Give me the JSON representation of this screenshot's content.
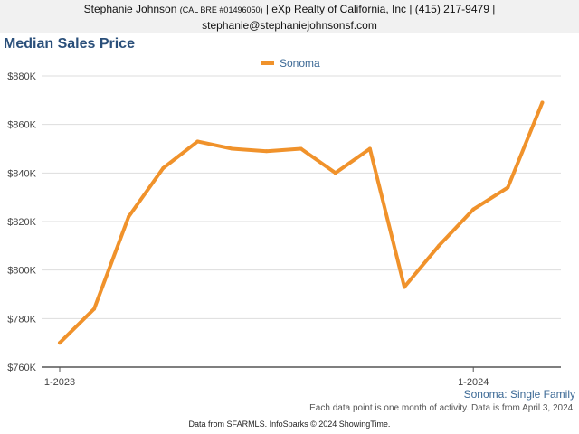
{
  "header": {
    "name": "Stephanie Johnson",
    "license": "(CAL BRE #01496050)",
    "brokerage": "| eXp Realty of California, Inc | (415) 217-9479 |",
    "email": "stephanie@stephaniejohnsonsf.com"
  },
  "chart_title": "Median Sales Price",
  "caption": "Sonoma: Single Family",
  "footnote": "Each data point is one month of activity. Data is from April 3, 2024.",
  "credit": "Data from SFARMLS. InfoSparks © 2024 ShowingTime.",
  "colors": {
    "series": "#f0922b",
    "title": "#2a4f7a",
    "grid": "#dddddd",
    "axis": "#555555"
  },
  "chart_data": {
    "type": "line",
    "x": [
      "2023-01",
      "2023-02",
      "2023-03",
      "2023-04",
      "2023-05",
      "2023-06",
      "2023-07",
      "2023-08",
      "2023-09",
      "2023-10",
      "2023-11",
      "2023-12",
      "2024-01",
      "2024-02",
      "2024-03"
    ],
    "x_tick_labels": [
      {
        "x": "2023-01",
        "label": "1-2023"
      },
      {
        "x": "2024-01",
        "label": "1-2024"
      }
    ],
    "series": [
      {
        "name": "Sonoma",
        "values": [
          770000,
          784000,
          822000,
          842000,
          853000,
          850000,
          849000,
          850000,
          840000,
          850000,
          793000,
          810000,
          825000,
          834000,
          869000
        ]
      }
    ],
    "ylim": [
      760000,
      880000
    ],
    "y_tick_labels": [
      "$760K",
      "$780K",
      "$800K",
      "$820K",
      "$840K",
      "$860K",
      "$880K"
    ],
    "grid": true,
    "legend_position": "top"
  }
}
